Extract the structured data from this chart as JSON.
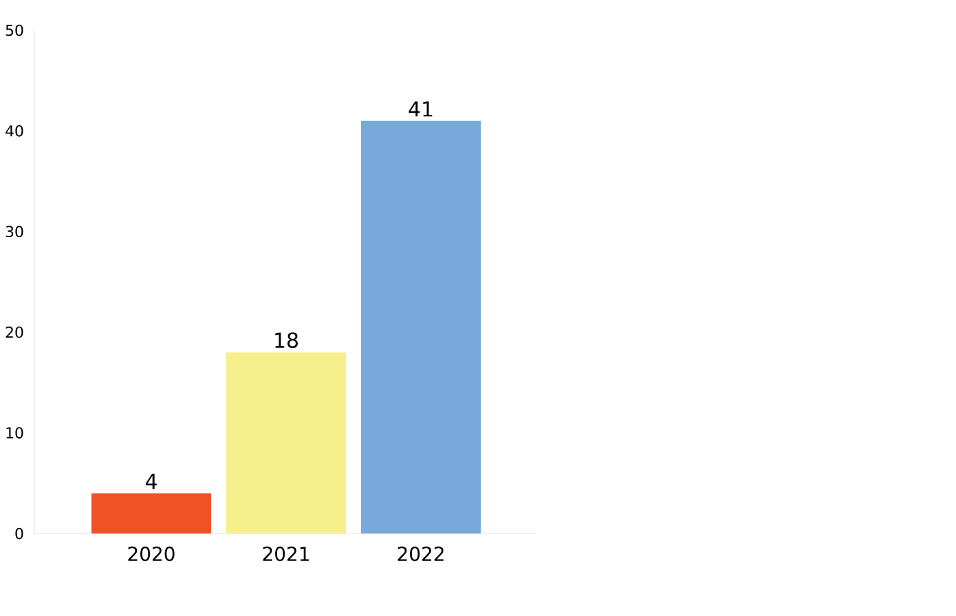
{
  "chart_data": {
    "type": "bar",
    "categories": [
      "2020",
      "2021",
      "2022"
    ],
    "values": [
      4,
      18,
      41
    ],
    "colors": [
      "#f15127",
      "#f7ef8c",
      "#77a9db"
    ],
    "ylim": [
      0,
      50
    ],
    "yticks": [
      0,
      10,
      20,
      30,
      40,
      50
    ],
    "data_labels": true
  }
}
